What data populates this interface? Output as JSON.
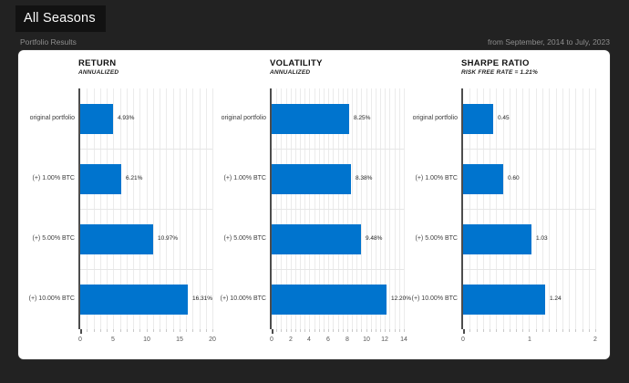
{
  "page": {
    "title": "All Seasons",
    "subtitle": "Portfolio Results",
    "date_range": "from September, 2014 to July, 2023"
  },
  "colors": {
    "page_bg": "#222222",
    "title_box_bg": "#121212",
    "card_bg": "#ffffff",
    "bar": "#0074ce",
    "axis": "#4d4d4d",
    "grid": "#ebebeb"
  },
  "chart_data": [
    {
      "type": "bar",
      "orientation": "horizontal",
      "title": "RETURN",
      "subtitle": "ANNUALIZED",
      "categories": [
        "original portfolio",
        "(+) 1.00% BTC",
        "(+) 5.00% BTC",
        "(+) 10.00% BTC"
      ],
      "values": [
        4.93,
        6.21,
        10.97,
        16.31
      ],
      "value_labels": [
        "4.93%",
        "6.21%",
        "10.97%",
        "16.31%"
      ],
      "xlim": [
        0,
        20
      ],
      "xticks": [
        0,
        5,
        10,
        15,
        20
      ],
      "minor_step": 1,
      "grid": true,
      "legend": "none"
    },
    {
      "type": "bar",
      "orientation": "horizontal",
      "title": "VOLATILITY",
      "subtitle": "ANNUALIZED",
      "categories": [
        "original portfolio",
        "(+) 1.00% BTC",
        "(+) 5.00% BTC",
        "(+) 10.00% BTC"
      ],
      "values": [
        8.25,
        8.38,
        9.48,
        12.2
      ],
      "value_labels": [
        "8.25%",
        "8.38%",
        "9.48%",
        "12.20%"
      ],
      "xlim": [
        0,
        14
      ],
      "xticks": [
        0,
        2,
        4,
        6,
        8,
        10,
        12,
        14
      ],
      "minor_step": 0.5,
      "grid": true,
      "legend": "none"
    },
    {
      "type": "bar",
      "orientation": "horizontal",
      "title": "SHARPE RATIO",
      "subtitle": "RISK FREE RATE = 1.21%",
      "categories": [
        "original portfolio",
        "(+) 1.00% BTC",
        "(+) 5.00% BTC",
        "(+) 10.00% BTC"
      ],
      "values": [
        0.45,
        0.6,
        1.03,
        1.24
      ],
      "value_labels": [
        "0.45",
        "0.60",
        "1.03",
        "1.24"
      ],
      "xlim": [
        0,
        2
      ],
      "xticks": [
        0,
        1,
        2
      ],
      "minor_step": 0.1,
      "grid": true,
      "legend": "none"
    }
  ]
}
